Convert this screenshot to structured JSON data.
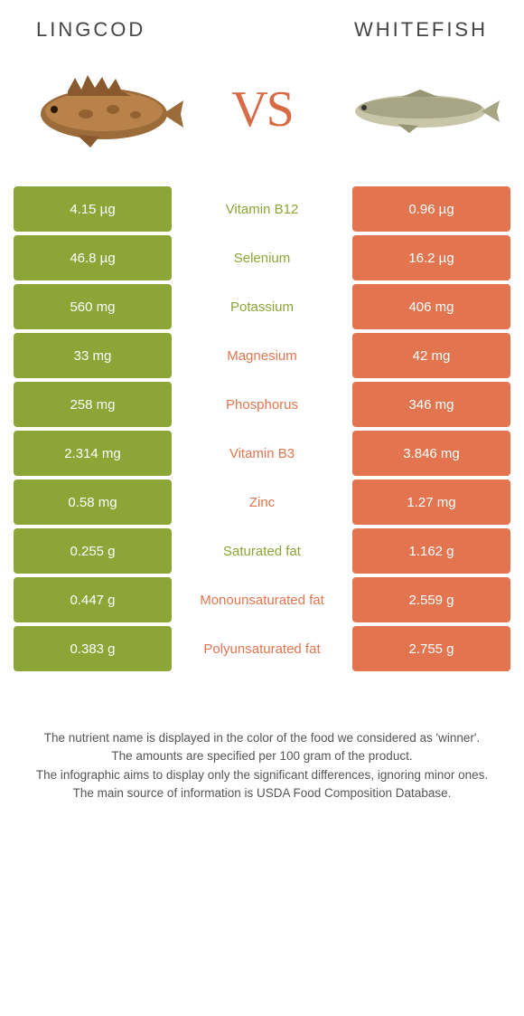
{
  "header": {
    "left_title": "Lingcod",
    "right_title": "Whitefish",
    "vs_label": "VS"
  },
  "colors": {
    "left": "#8ba637",
    "right": "#e2754f",
    "background": "#ffffff"
  },
  "rows": [
    {
      "nutrient": "Vitamin B12",
      "left": "4.15 µg",
      "right": "0.96 µg",
      "winner": "left"
    },
    {
      "nutrient": "Selenium",
      "left": "46.8 µg",
      "right": "16.2 µg",
      "winner": "left"
    },
    {
      "nutrient": "Potassium",
      "left": "560 mg",
      "right": "406 mg",
      "winner": "left"
    },
    {
      "nutrient": "Magnesium",
      "left": "33 mg",
      "right": "42 mg",
      "winner": "right"
    },
    {
      "nutrient": "Phosphorus",
      "left": "258 mg",
      "right": "346 mg",
      "winner": "right"
    },
    {
      "nutrient": "Vitamin B3",
      "left": "2.314 mg",
      "right": "3.846 mg",
      "winner": "right"
    },
    {
      "nutrient": "Zinc",
      "left": "0.58 mg",
      "right": "1.27 mg",
      "winner": "right"
    },
    {
      "nutrient": "Saturated fat",
      "left": "0.255 g",
      "right": "1.162 g",
      "winner": "left"
    },
    {
      "nutrient": "Monounsaturated fat",
      "left": "0.447 g",
      "right": "2.559 g",
      "winner": "right"
    },
    {
      "nutrient": "Polyunsaturated fat",
      "left": "0.383 g",
      "right": "2.755 g",
      "winner": "right"
    }
  ],
  "footer": {
    "line1": "The nutrient name is displayed in the color of the food we considered as 'winner'.",
    "line2": "The amounts are specified per 100 gram of the product.",
    "line3": "The infographic aims to display only the significant differences, ignoring minor ones.",
    "line4": "The main source of information is USDA Food Composition Database."
  }
}
